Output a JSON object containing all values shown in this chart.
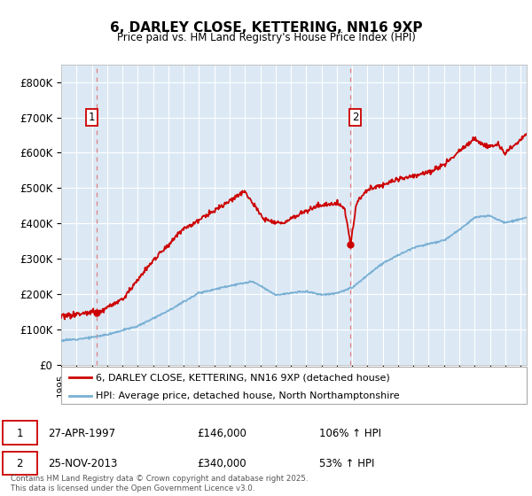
{
  "title": "6, DARLEY CLOSE, KETTERING, NN16 9XP",
  "subtitle": "Price paid vs. HM Land Registry's House Price Index (HPI)",
  "background_color": "#ffffff",
  "plot_bg_color": "#dce9f5",
  "grid_color": "#ffffff",
  "sale1_date": "27-APR-1997",
  "sale1_price": 146000,
  "sale1_hpi": "106%",
  "sale2_date": "25-NOV-2013",
  "sale2_price": 340000,
  "sale2_hpi": "53%",
  "legend_label1": "6, DARLEY CLOSE, KETTERING, NN16 9XP (detached house)",
  "legend_label2": "HPI: Average price, detached house, North Northamptonshire",
  "footer": "Contains HM Land Registry data © Crown copyright and database right 2025.\nThis data is licensed under the Open Government Licence v3.0.",
  "line1_color": "#cc0000",
  "line2_color": "#7ab0d4",
  "dashed_color": "#e08080",
  "dot1_color": "#cc0000",
  "dot2_color": "#cc0000",
  "ylim": [
    0,
    850000
  ],
  "yticks": [
    0,
    100000,
    200000,
    300000,
    400000,
    500000,
    600000,
    700000,
    800000
  ],
  "ytick_labels": [
    "£0",
    "£100K",
    "£200K",
    "£300K",
    "£400K",
    "£500K",
    "£600K",
    "£700K",
    "£800K"
  ],
  "sale1_x": 1997.3,
  "sale2_x": 2013.9,
  "xlim_left": 1995.0,
  "xlim_right": 2025.4
}
